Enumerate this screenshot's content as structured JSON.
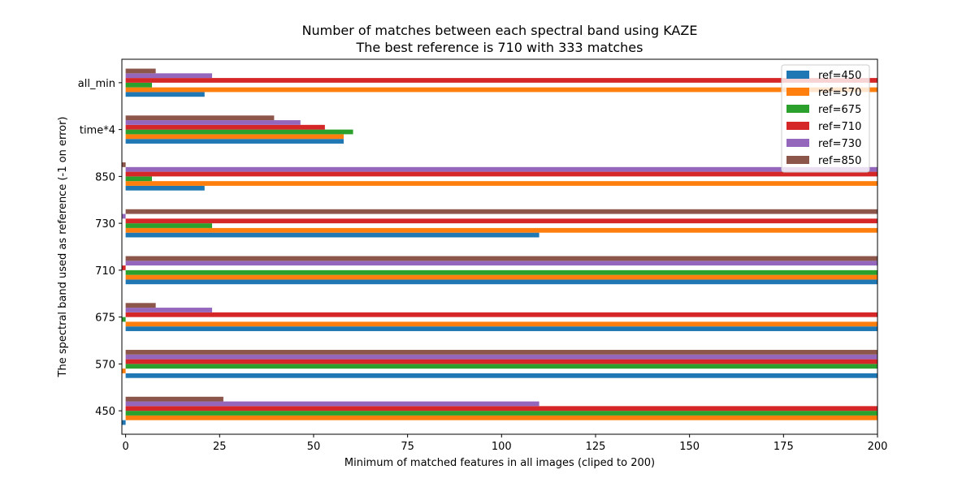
{
  "chart_data": {
    "type": "bar",
    "orientation": "horizontal",
    "title": "Number of matches between each spectral band using KAZE",
    "subtitle": "The best reference is 710 with 333 matches",
    "xlabel": "Minimum of matched features in all images (cliped to 200)",
    "ylabel": "The spectral band used as reference (-1 on error)",
    "xlim": [
      -1,
      200
    ],
    "xticks": [
      0,
      25,
      50,
      75,
      100,
      125,
      150,
      175,
      200
    ],
    "categories": [
      "450",
      "570",
      "675",
      "710",
      "730",
      "850",
      "time*4",
      "all_min"
    ],
    "series": [
      {
        "name": "ref=450",
        "color": "#1f77b4",
        "values": [
          -1,
          200,
          200,
          200,
          110,
          21,
          58,
          21
        ]
      },
      {
        "name": "ref=570",
        "color": "#ff7f0e",
        "values": [
          200,
          -1,
          200,
          200,
          200,
          200,
          58,
          200
        ]
      },
      {
        "name": "ref=675",
        "color": "#2ca02c",
        "values": [
          200,
          200,
          -1,
          200,
          23,
          7,
          60.5,
          7
        ]
      },
      {
        "name": "ref=710",
        "color": "#d62728",
        "values": [
          200,
          200,
          200,
          -1,
          200,
          200,
          53,
          200
        ]
      },
      {
        "name": "ref=730",
        "color": "#9467bd",
        "values": [
          110,
          200,
          23,
          200,
          -1,
          200,
          46.5,
          23
        ]
      },
      {
        "name": "ref=850",
        "color": "#8c564b",
        "values": [
          26,
          200,
          8,
          200,
          200,
          -1,
          39.5,
          8
        ]
      }
    ],
    "legend_position": "top-right",
    "grid": false
  }
}
